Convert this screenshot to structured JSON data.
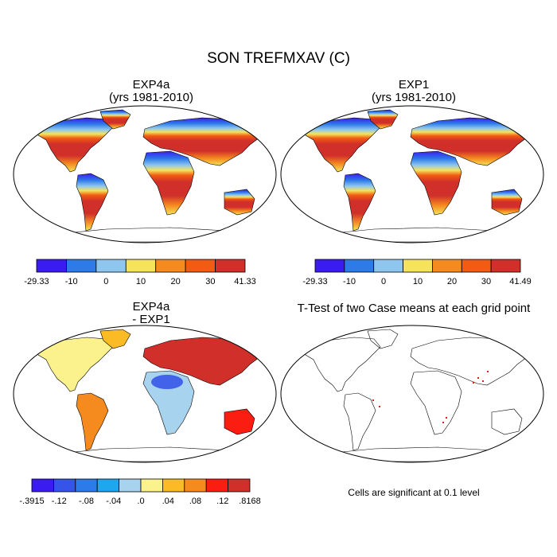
{
  "main_title": "SON TREFMXAV (C)",
  "panels": [
    {
      "id": "exp4a",
      "title_line1": "EXP4a",
      "title_line2": "(yrs 1981-2010)",
      "colorbar": {
        "labels": [
          "-29.33",
          "-10",
          "0",
          "10",
          "20",
          "30",
          "41.33"
        ],
        "colors": [
          "#3b1cf0",
          "#2d7be8",
          "#8ec6ef",
          "#f5e45a",
          "#f58a1e",
          "#f25b12",
          "#d1302a"
        ]
      }
    },
    {
      "id": "exp1",
      "title_line1": "EXP1",
      "title_line2": "(yrs 1981-2010)",
      "colorbar": {
        "labels": [
          "-29.33",
          "-10",
          "0",
          "10",
          "20",
          "30",
          "41.49"
        ],
        "colors": [
          "#3b1cf0",
          "#2d7be8",
          "#8ec6ef",
          "#f5e45a",
          "#f58a1e",
          "#f25b12",
          "#d1302a"
        ]
      }
    },
    {
      "id": "diff",
      "title_line1": "EXP4a",
      "title_line2": "- EXP1",
      "colorbar": {
        "labels": [
          "-.3915",
          "-.12",
          "-.08",
          "-.04",
          ".0",
          ".04",
          ".08",
          ".12",
          ".8168"
        ],
        "colors": [
          "#3b1cf0",
          "#3655e8",
          "#2d7be8",
          "#1ea6ee",
          "#a7d3ef",
          "#fbf28e",
          "#fbbb25",
          "#f58a1e",
          "#fb1d12",
          "#d1302a"
        ]
      }
    },
    {
      "id": "ttest",
      "title_line1": "T-Test of two Case means at each grid point",
      "title_line2": "",
      "note": "Cells are significant at 0.1 level"
    }
  ]
}
